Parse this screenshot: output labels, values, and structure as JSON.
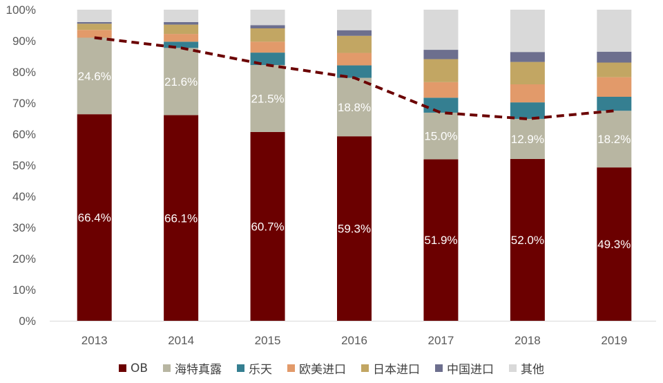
{
  "chart_data": {
    "type": "bar",
    "stacked": true,
    "title": "",
    "xlabel": "",
    "ylabel": "",
    "ylim": [
      0,
      100
    ],
    "yticks": [
      "0%",
      "10%",
      "20%",
      "30%",
      "40%",
      "50%",
      "60%",
      "70%",
      "80%",
      "90%",
      "100%"
    ],
    "categories": [
      "2013",
      "2014",
      "2015",
      "2016",
      "2017",
      "2018",
      "2019"
    ],
    "series": [
      {
        "name": "OB",
        "color": "#6b0000",
        "values": [
          66.4,
          66.1,
          60.7,
          59.3,
          51.9,
          52.0,
          49.3
        ],
        "labels": [
          "66.4%",
          "66.1%",
          "60.7%",
          "59.3%",
          "51.9%",
          "52.0%",
          "49.3%"
        ]
      },
      {
        "name": "海特真露",
        "color": "#b8b6a2",
        "values": [
          24.6,
          21.6,
          21.5,
          18.8,
          15.0,
          12.9,
          18.2
        ],
        "labels": [
          "24.6%",
          "21.6%",
          "21.5%",
          "18.8%",
          "15.0%",
          "12.9%",
          "18.2%"
        ]
      },
      {
        "name": "乐天",
        "color": "#357f91",
        "values": [
          0.0,
          2.0,
          4.0,
          4.0,
          4.8,
          5.3,
          4.5
        ]
      },
      {
        "name": "欧美进口",
        "color": "#e29a6a",
        "values": [
          2.5,
          2.5,
          3.5,
          4.0,
          5.0,
          5.8,
          6.3
        ]
      },
      {
        "name": "日本进口",
        "color": "#c2a663",
        "values": [
          2.0,
          3.0,
          4.3,
          5.5,
          7.4,
          7.2,
          4.7
        ]
      },
      {
        "name": "中国进口",
        "color": "#6d6f8e",
        "values": [
          0.5,
          0.8,
          1.0,
          1.8,
          3.0,
          3.2,
          3.5
        ]
      },
      {
        "name": "其他",
        "color": "#d9d9d9",
        "values": [
          4.0,
          4.0,
          5.0,
          6.6,
          12.9,
          13.6,
          13.5
        ]
      }
    ],
    "line": {
      "name": "",
      "style": "dashed",
      "color": "#6b0000",
      "values": [
        91.0,
        87.7,
        82.2,
        78.1,
        66.9,
        64.9,
        67.5
      ]
    },
    "legend_position": "bottom"
  }
}
